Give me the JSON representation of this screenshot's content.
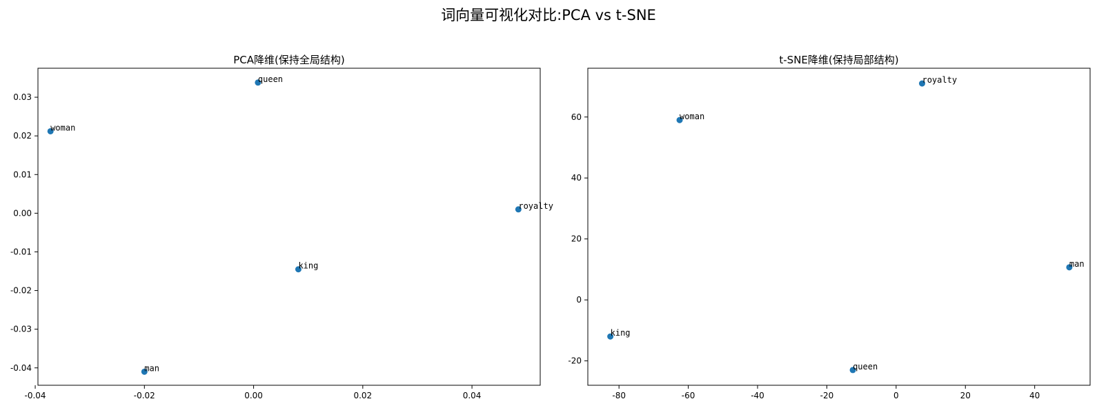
{
  "figure": {
    "title": "词向量可视化对比:PCA vs t-SNE"
  },
  "colors": {
    "point": "#1f77b4",
    "axis": "#000000",
    "text": "#000000",
    "background": "#ffffff"
  },
  "chart_data": [
    {
      "type": "scatter",
      "title": "PCA降维(保持全局结构)",
      "xlabel": "",
      "ylabel": "",
      "xlim": [
        -0.0395,
        0.0525
      ],
      "ylim": [
        -0.0445,
        0.0375
      ],
      "xticks": [
        -0.04,
        -0.02,
        0.0,
        0.02,
        0.04
      ],
      "xtick_labels": [
        "-0.04",
        "-0.02",
        "0.00",
        "0.02",
        "0.04"
      ],
      "yticks": [
        0.03,
        0.02,
        0.01,
        0.0,
        -0.01,
        -0.02,
        -0.03,
        -0.04
      ],
      "ytick_labels": [
        "0.03",
        "0.02",
        "0.01",
        "0.00",
        "-0.01",
        "-0.02",
        "-0.03",
        "-0.04"
      ],
      "grid": false,
      "points": [
        {
          "label": "queen",
          "x": 0.0008,
          "y": 0.0338
        },
        {
          "label": "woman",
          "x": -0.0372,
          "y": 0.0212
        },
        {
          "label": "royalty",
          "x": 0.0485,
          "y": 0.001
        },
        {
          "label": "king",
          "x": 0.0082,
          "y": -0.0145
        },
        {
          "label": "man",
          "x": -0.02,
          "y": -0.041
        }
      ]
    },
    {
      "type": "scatter",
      "title": "t-SNE降维(保持局部结构)",
      "xlabel": "",
      "ylabel": "",
      "xlim": [
        -89,
        56
      ],
      "ylim": [
        -28,
        76
      ],
      "xticks": [
        -80,
        -60,
        -40,
        -20,
        0,
        20,
        40
      ],
      "xtick_labels": [
        "-80",
        "-60",
        "-40",
        "-20",
        "0",
        "20",
        "40"
      ],
      "yticks": [
        60,
        40,
        20,
        0,
        -20
      ],
      "ytick_labels": [
        "60",
        "40",
        "20",
        "0",
        "-20"
      ],
      "grid": false,
      "points": [
        {
          "label": "royalty",
          "x": 7.5,
          "y": 71.0
        },
        {
          "label": "woman",
          "x": -62.5,
          "y": 59.0
        },
        {
          "label": "man",
          "x": 50.0,
          "y": 10.7
        },
        {
          "label": "king",
          "x": -82.5,
          "y": -12.0
        },
        {
          "label": "queen",
          "x": -12.5,
          "y": -23.0
        }
      ]
    }
  ]
}
